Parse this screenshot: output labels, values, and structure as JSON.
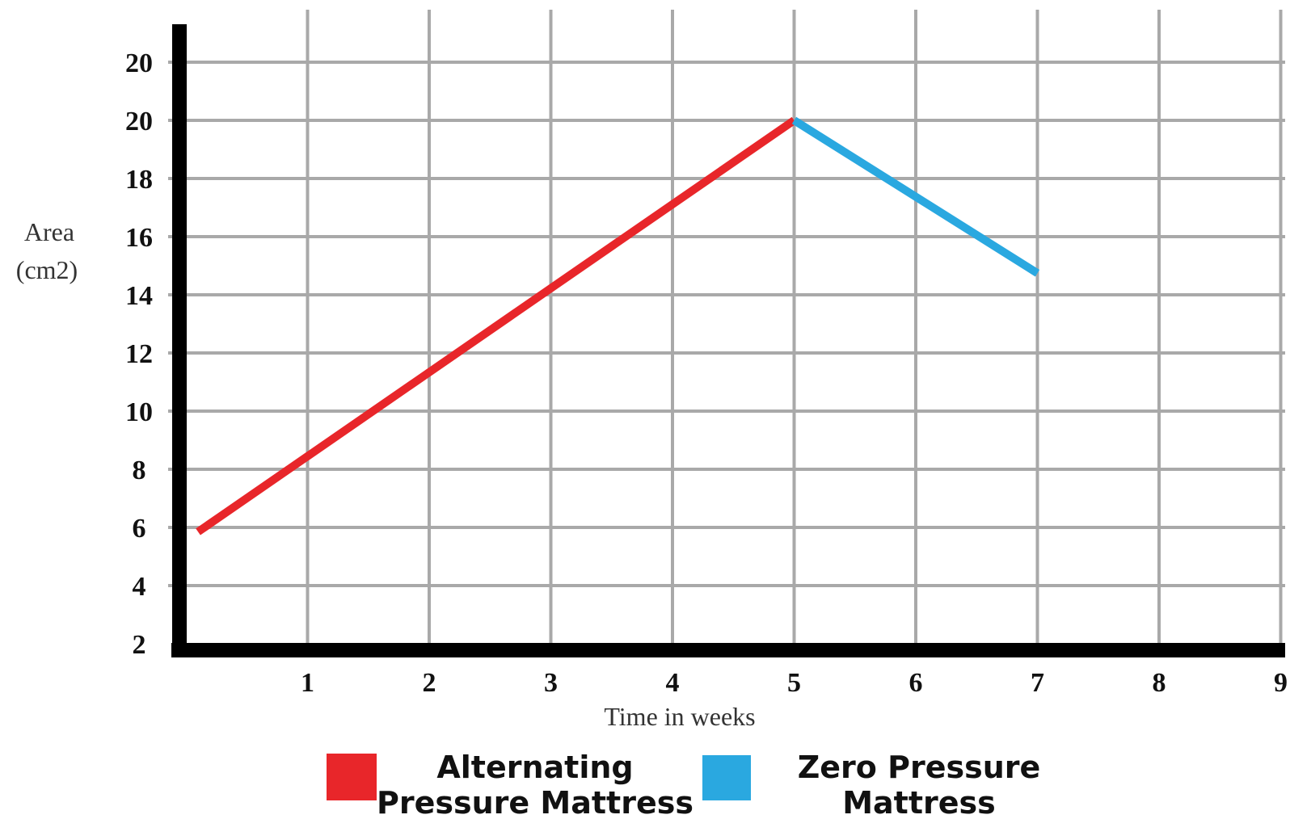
{
  "chart_data": {
    "type": "line",
    "title": "",
    "xlabel": "Time in weeks",
    "ylabel_lines": [
      "Area",
      "(cm2)"
    ],
    "x_ticks": [
      "1",
      "2",
      "3",
      "4",
      "5",
      "6",
      "7",
      "8",
      "9"
    ],
    "y_ticks": [
      "2",
      "4",
      "6",
      "8",
      "10",
      "12",
      "14",
      "16",
      "18",
      "20",
      "20"
    ],
    "grid": true,
    "legend_position": "bottom",
    "series": [
      {
        "name_lines": [
          "Alternating",
          "Pressure Mattress"
        ],
        "color": "#e8262a",
        "points": [
          {
            "x": 0.1,
            "y": 6.0
          },
          {
            "x": 5.0,
            "y": 20.0
          }
        ]
      },
      {
        "name_lines": [
          "Zero Pressure",
          "Mattress"
        ],
        "color": "#2aa8e0",
        "points": [
          {
            "x": 5.0,
            "y": 20.0
          },
          {
            "x": 7.0,
            "y": 14.8
          }
        ]
      }
    ]
  }
}
